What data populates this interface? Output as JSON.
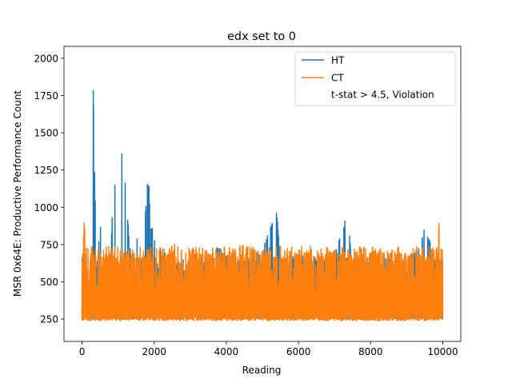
{
  "chart_data": {
    "type": "line",
    "title": "edx set to 0",
    "xlabel": "Reading",
    "ylabel": "MSR 0x64E: Productive Performance Count",
    "xlim": [
      -500,
      10500
    ],
    "ylim": [
      100,
      2080
    ],
    "x_ticks": [
      0,
      2000,
      4000,
      6000,
      8000,
      10000
    ],
    "y_ticks": [
      250,
      500,
      750,
      1000,
      1250,
      1500,
      1750,
      2000
    ],
    "grid": false,
    "legend_position": "top-right",
    "legend": [
      {
        "label": "HT",
        "color": "#1f77b4",
        "kind": "line"
      },
      {
        "label": "CT",
        "color": "#ff7f0e",
        "kind": "line"
      },
      {
        "label": "t-stat > 4.5, Violation",
        "color": "none",
        "kind": "blank"
      }
    ],
    "series": [
      {
        "name": "HT",
        "color": "#1f77b4",
        "x": [
          0,
          30,
          60,
          100,
          200,
          250,
          300,
          400,
          500,
          600,
          700,
          800,
          850,
          900,
          950,
          1000,
          1050,
          1100,
          1150,
          1200,
          1300,
          1400,
          1500,
          1600,
          1700,
          1800,
          1850,
          1900,
          2000,
          2200,
          2500,
          3000,
          3500,
          3800,
          4000,
          4500,
          5000,
          5400,
          5500,
          6000,
          6500,
          7000,
          7350,
          7500,
          8000,
          8500,
          9000,
          9400,
          9500,
          9800,
          10000
        ],
        "values": [
          300,
          560,
          1040,
          700,
          300,
          620,
          1975,
          560,
          920,
          480,
          560,
          720,
          1080,
          1110,
          1280,
          1150,
          1290,
          1380,
          1370,
          1150,
          820,
          610,
          880,
          620,
          700,
          1170,
          1190,
          900,
          810,
          720,
          650,
          600,
          640,
          760,
          680,
          650,
          720,
          980,
          640,
          700,
          640,
          680,
          980,
          620,
          600,
          680,
          650,
          750,
          900,
          650,
          600
        ],
        "band_low": 250,
        "band_high": 600,
        "baseline_level": 420
      },
      {
        "name": "CT",
        "color": "#ff7f0e",
        "x": [
          0,
          30,
          60,
          100,
          200,
          300,
          400,
          600,
          800,
          1000,
          1200,
          1500,
          1800,
          2000,
          2300,
          2500,
          3000,
          3500,
          4000,
          4500,
          5000,
          5500,
          6000,
          6500,
          7000,
          7500,
          8000,
          8500,
          9000,
          9500,
          9800,
          9900,
          10000
        ],
        "values": [
          650,
          730,
          920,
          760,
          720,
          650,
          700,
          680,
          700,
          650,
          690,
          660,
          700,
          700,
          690,
          760,
          700,
          720,
          690,
          760,
          700,
          680,
          720,
          700,
          720,
          680,
          700,
          720,
          700,
          680,
          760,
          900,
          650
        ],
        "band_low": 240,
        "band_high": 680,
        "baseline_level": 430
      }
    ]
  }
}
